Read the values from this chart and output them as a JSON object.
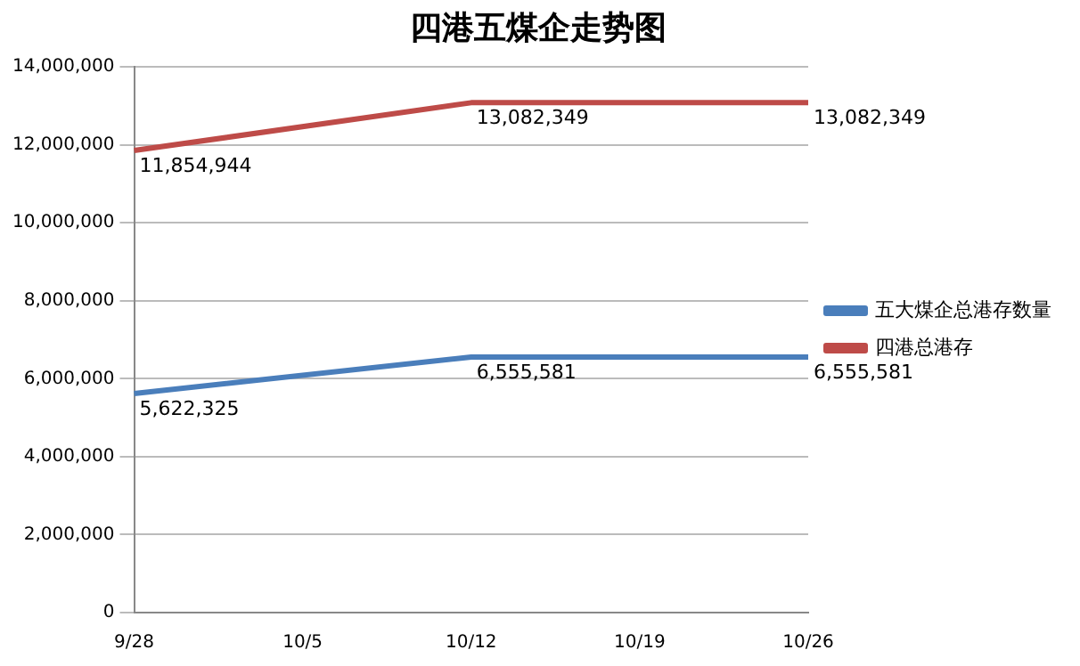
{
  "chart_data": {
    "type": "line",
    "title": "四港五煤企走势图",
    "categories": [
      "9/28",
      "10/5",
      "10/12",
      "10/19",
      "10/26"
    ],
    "series": [
      {
        "name": "五大煤企总港存数量",
        "color": "#4a7ebb",
        "values": [
          5622325,
          null,
          6555581,
          null,
          6555581
        ],
        "value_labels": [
          "5,622,325",
          null,
          "6,555,581",
          null,
          "6,555,581"
        ]
      },
      {
        "name": "四港总港存",
        "color": "#be4b48",
        "values": [
          11854944,
          null,
          13082349,
          null,
          13082349
        ],
        "value_labels": [
          "11,854,944",
          null,
          "13,082,349",
          null,
          "13,082,349"
        ]
      }
    ],
    "ylim": [
      0,
      14000000
    ],
    "yticks": [
      {
        "value": 0,
        "label": "0"
      },
      {
        "value": 2000000,
        "label": "2,000,000"
      },
      {
        "value": 4000000,
        "label": "4,000,000"
      },
      {
        "value": 6000000,
        "label": "6,000,000"
      },
      {
        "value": 8000000,
        "label": "8,000,000"
      },
      {
        "value": 10000000,
        "label": "10,000,000"
      },
      {
        "value": 12000000,
        "label": "12,000,000"
      },
      {
        "value": 14000000,
        "label": "14,000,000"
      }
    ],
    "grid": "y",
    "legend": "right",
    "marker": "none",
    "line_style": "solid"
  }
}
